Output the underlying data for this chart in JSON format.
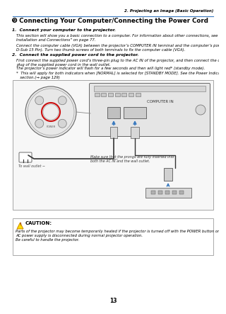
{
  "page_header_right": "2. Projecting an Image (Basic Operation)",
  "section_title": "➒ Connecting Your Computer/Connecting the Power Cord",
  "step1_bold": "1.  Connect your computer to the projector.",
  "step1_text1": "This section will show you a basic connection to a computer. For information about other connections, see “5.\nInstallation and Connections” on page 77.",
  "step1_text2": "Connect the computer cable (VGA) between the projector’s COMPUTER IN terminal and the computer’s port (mini\nD-Sub 15 Pin). Turn two thumb screws of both terminals to fix the computer cable (VGA).",
  "step2_bold": "2.  Connect the supplied power cord to the projector.",
  "step2_text1": "First connect the supplied power cord’s three-pin plug to the AC IN of the projector, and then connect the other\nplug of the supplied power cord in the wall outlet.",
  "step2_text2": "The projector’s power indicator will flash for a few seconds and then will light red* (standby mode).",
  "step2_bullet": "*  This will apply for both indicators when [NORMAL] is selected for [STANDBY MODE]. See the Power Indicator\n   section.(→ page 129)",
  "diagram_note": "Make sure that the prongs are fully inserted into\nboth the AC IN and the wall outlet.",
  "wall_outlet_label": "To wall outlet ∼",
  "caution_title": "CAUTION:",
  "caution_text": "Parts of the projector may become temporarily heated if the projector is turned off with the POWER button or if the\nAC power supply is disconnected during normal projector operation.\nBe careful to handle the projector.",
  "page_number": "13",
  "bg_color": "#ffffff",
  "text_color": "#000000",
  "header_line_color": "#3a7abf",
  "title_color": "#000000",
  "caution_box_border": "#aaaaaa",
  "diagram_box_border": "#999999",
  "arrow_color": "#3a7abf"
}
